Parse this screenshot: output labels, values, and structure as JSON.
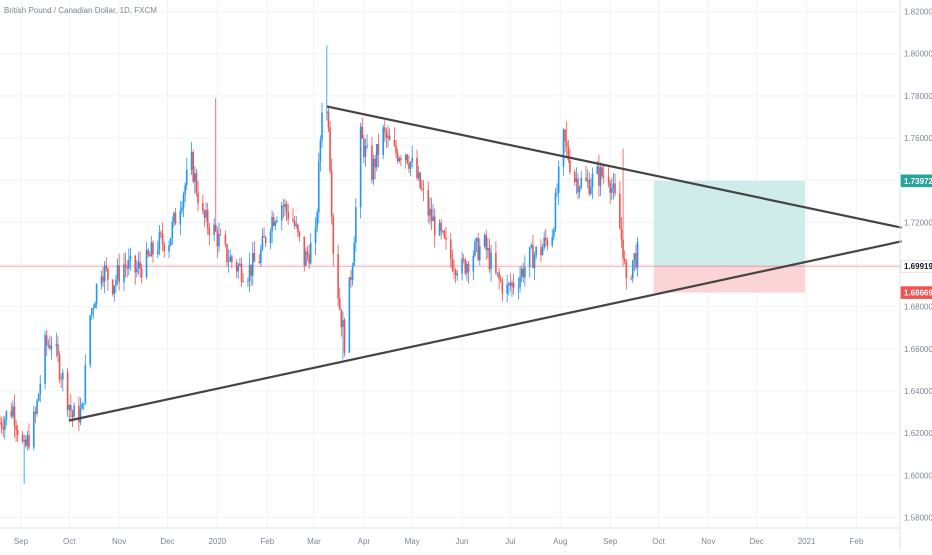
{
  "header": {
    "symbol_title": "British Pound / Canadian Dollar, 1D, FXCM"
  },
  "colors": {
    "up": "#2196f3",
    "down": "#ef5350",
    "trendline": "#444444",
    "profit_zone": "#cfeceb",
    "loss_zone": "#fbd5d5",
    "price_line": "#f5a9a9",
    "grid": "#f1f3f6",
    "axis_text": "#7f8591",
    "badge_current": "#ffffff",
    "badge_current_text": "#131722",
    "badge_target": "#26a69a",
    "badge_stop": "#ef5350"
  },
  "chart_data": {
    "type": "candlestick",
    "symbol": "GBPCAD",
    "timeframe": "1D",
    "x_axis": {
      "labels": [
        "Sep",
        "Oct",
        "Nov",
        "Dec",
        "2020",
        "Feb",
        "Mar",
        "Apr",
        "May",
        "Jun",
        "Jul",
        "Aug",
        "Sep",
        "Oct",
        "Nov",
        "Dec",
        "2021",
        "Feb"
      ],
      "label_dates": [
        "2019-09-01",
        "2019-10-01",
        "2019-11-01",
        "2019-12-01",
        "2020-01-01",
        "2020-02-01",
        "2020-03-01",
        "2020-04-01",
        "2020-05-01",
        "2020-06-01",
        "2020-07-01",
        "2020-08-01",
        "2020-09-01",
        "2020-10-01",
        "2020-11-01",
        "2020-12-01",
        "2021-01-01",
        "2021-02-01"
      ],
      "range": [
        "2019-08-19",
        "2021-02-28"
      ]
    },
    "y_axis": {
      "ticks": [
        1.58,
        1.6,
        1.62,
        1.64,
        1.66,
        1.68,
        1.7,
        1.72,
        1.74,
        1.76,
        1.78,
        1.8,
        1.82
      ],
      "tick_labels": [
        "1.58000",
        "1.60000",
        "1.62000",
        "1.64000",
        "1.66000",
        "1.68000",
        "1.70000",
        "1.72000",
        "1.74000",
        "1.76000",
        "1.78000",
        "1.80000",
        "1.82000"
      ],
      "range": [
        1.575,
        1.8255
      ],
      "position": "right"
    },
    "price_badges": [
      {
        "value": 1.73972,
        "label": "1.73972",
        "role": "target"
      },
      {
        "value": 1.69919,
        "label": "1.69919",
        "role": "current"
      },
      {
        "value": 1.68669,
        "label": "1.68669",
        "role": "stop"
      }
    ],
    "current_price": 1.69919,
    "trendlines": [
      {
        "name": "upper",
        "from": {
          "date": "2020-03-09",
          "price": 1.775
        },
        "to": {
          "date": "2021-03-01",
          "price": 1.7175
        }
      },
      {
        "name": "lower",
        "from": {
          "date": "2019-10-01",
          "price": 1.626
        },
        "to": {
          "date": "2021-03-01",
          "price": 1.711
        }
      }
    ],
    "position": {
      "direction": "long",
      "start_date": "2020-09-28",
      "end_date": "2020-12-31",
      "entry": 1.69919,
      "target": 1.73972,
      "stop": 1.68669
    },
    "candle_anchors": [
      [
        "2019-08-19",
        1.625
      ],
      [
        "2019-08-27",
        1.632
      ],
      [
        "2019-09-03",
        1.611
      ],
      [
        "2019-09-10",
        1.628
      ],
      [
        "2019-09-16",
        1.661
      ],
      [
        "2019-09-20",
        1.664
      ],
      [
        "2019-09-26",
        1.649
      ],
      [
        "2019-10-03",
        1.628
      ],
      [
        "2019-10-09",
        1.63
      ],
      [
        "2019-10-14",
        1.676
      ],
      [
        "2019-10-21",
        1.699
      ],
      [
        "2019-10-28",
        1.691
      ],
      [
        "2019-11-04",
        1.7
      ],
      [
        "2019-11-11",
        1.697
      ],
      [
        "2019-11-18",
        1.701
      ],
      [
        "2019-11-25",
        1.71
      ],
      [
        "2019-12-02",
        1.712
      ],
      [
        "2019-12-09",
        1.73
      ],
      [
        "2019-12-16",
        1.748
      ],
      [
        "2019-12-23",
        1.722
      ],
      [
        "2019-12-30",
        1.716
      ],
      [
        "2020-01-06",
        1.705
      ],
      [
        "2020-01-13",
        1.699
      ],
      [
        "2020-01-20",
        1.697
      ],
      [
        "2020-01-27",
        1.703
      ],
      [
        "2020-02-03",
        1.721
      ],
      [
        "2020-02-10",
        1.729
      ],
      [
        "2020-02-17",
        1.721
      ],
      [
        "2020-02-24",
        1.702
      ],
      [
        "2020-03-02",
        1.712
      ],
      [
        "2020-03-06",
        1.776
      ],
      [
        "2020-03-10",
        1.77
      ],
      [
        "2020-03-13",
        1.708
      ],
      [
        "2020-03-17",
        1.68
      ],
      [
        "2020-03-20",
        1.664
      ],
      [
        "2020-03-25",
        1.704
      ],
      [
        "2020-03-30",
        1.76
      ],
      [
        "2020-04-06",
        1.744
      ],
      [
        "2020-04-13",
        1.762
      ],
      [
        "2020-04-20",
        1.753
      ],
      [
        "2020-04-27",
        1.754
      ],
      [
        "2020-05-04",
        1.741
      ],
      [
        "2020-05-11",
        1.725
      ],
      [
        "2020-05-18",
        1.714
      ],
      [
        "2020-05-25",
        1.703
      ],
      [
        "2020-06-01",
        1.698
      ],
      [
        "2020-06-08",
        1.706
      ],
      [
        "2020-06-15",
        1.709
      ],
      [
        "2020-06-22",
        1.694
      ],
      [
        "2020-06-29",
        1.688
      ],
      [
        "2020-07-06",
        1.694
      ],
      [
        "2020-07-13",
        1.703
      ],
      [
        "2020-07-20",
        1.707
      ],
      [
        "2020-07-27",
        1.716
      ],
      [
        "2020-08-03",
        1.759
      ],
      [
        "2020-08-10",
        1.741
      ],
      [
        "2020-08-17",
        1.738
      ],
      [
        "2020-08-24",
        1.742
      ],
      [
        "2020-08-31",
        1.743
      ],
      [
        "2020-09-04",
        1.73
      ],
      [
        "2020-09-09",
        1.708
      ],
      [
        "2020-09-11",
        1.688
      ],
      [
        "2020-09-15",
        1.702
      ],
      [
        "2020-09-18",
        1.705
      ]
    ]
  }
}
